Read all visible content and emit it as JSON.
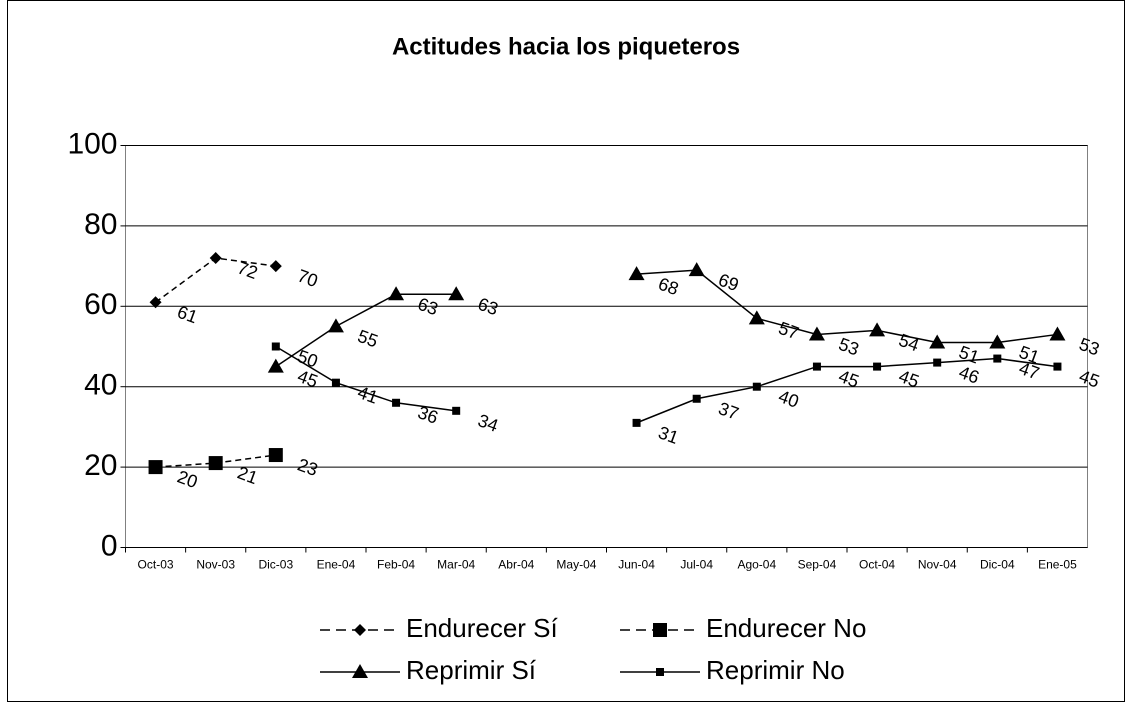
{
  "chart_data": {
    "type": "line",
    "title": "Actitudes hacia los piqueteros",
    "categories": [
      "Oct-03",
      "Nov-03",
      "Dic-03",
      "Ene-04",
      "Feb-04",
      "Mar-04",
      "Abr-04",
      "May-04",
      "Jun-04",
      "Jul-04",
      "Ago-04",
      "Sep-04",
      "Oct-04",
      "Nov-04",
      "Dic-04",
      "Ene-05"
    ],
    "series": [
      {
        "name": "Endurecer Sí",
        "color": "#000000",
        "marker": "diamond",
        "dashed": true,
        "values": [
          61,
          72,
          70,
          null,
          null,
          null,
          null,
          null,
          null,
          null,
          null,
          null,
          null,
          null,
          null,
          null
        ]
      },
      {
        "name": "Endurecer No",
        "color": "#000000",
        "marker": "square",
        "dashed": true,
        "values": [
          20,
          21,
          23,
          null,
          null,
          null,
          null,
          null,
          null,
          null,
          null,
          null,
          null,
          null,
          null,
          null
        ]
      },
      {
        "name": "Reprimir Sí",
        "color": "#000000",
        "marker": "triangle",
        "dashed": false,
        "values": [
          null,
          null,
          45,
          55,
          63,
          63,
          null,
          null,
          68,
          69,
          57,
          53,
          54,
          51,
          51,
          53
        ]
      },
      {
        "name": "Reprimir No",
        "color": "#000000",
        "marker": "small-square",
        "dashed": false,
        "values": [
          null,
          null,
          50,
          41,
          36,
          34,
          null,
          null,
          31,
          37,
          40,
          45,
          45,
          46,
          47,
          45
        ]
      }
    ],
    "ylim": [
      0,
      100
    ],
    "yticks": [
      0,
      20,
      40,
      60,
      80,
      100
    ],
    "grid": true
  }
}
